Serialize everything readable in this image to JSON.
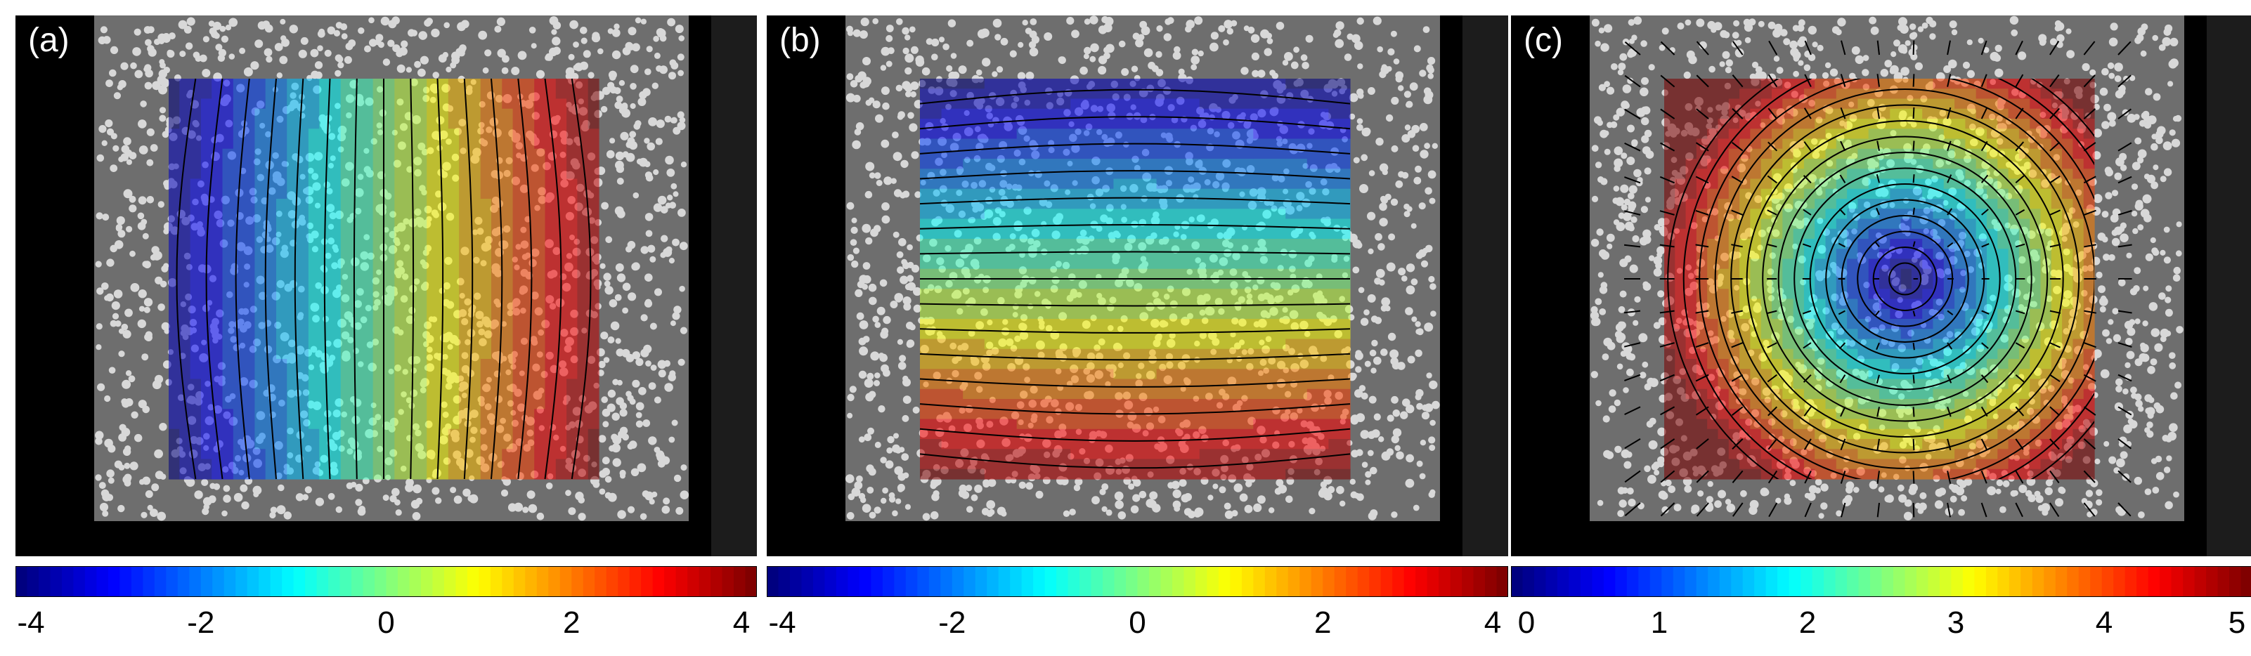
{
  "panels": [
    {
      "label": "(a)",
      "field": "horizontal",
      "ticks": [
        "-4",
        "-2",
        "0",
        "2",
        "4"
      ]
    },
    {
      "label": "(b)",
      "field": "vertical",
      "ticks": [
        "-4",
        "-2",
        "0",
        "2",
        "4"
      ]
    },
    {
      "label": "(c)",
      "field": "radial",
      "ticks": [
        "0",
        "1",
        "2",
        "3",
        "4",
        "5"
      ]
    }
  ],
  "colormap": "jet",
  "colors": {
    "background": "#000000",
    "specimen": "#6e6e6e",
    "dot": "#d8d8d8",
    "contour": "#000000"
  }
}
